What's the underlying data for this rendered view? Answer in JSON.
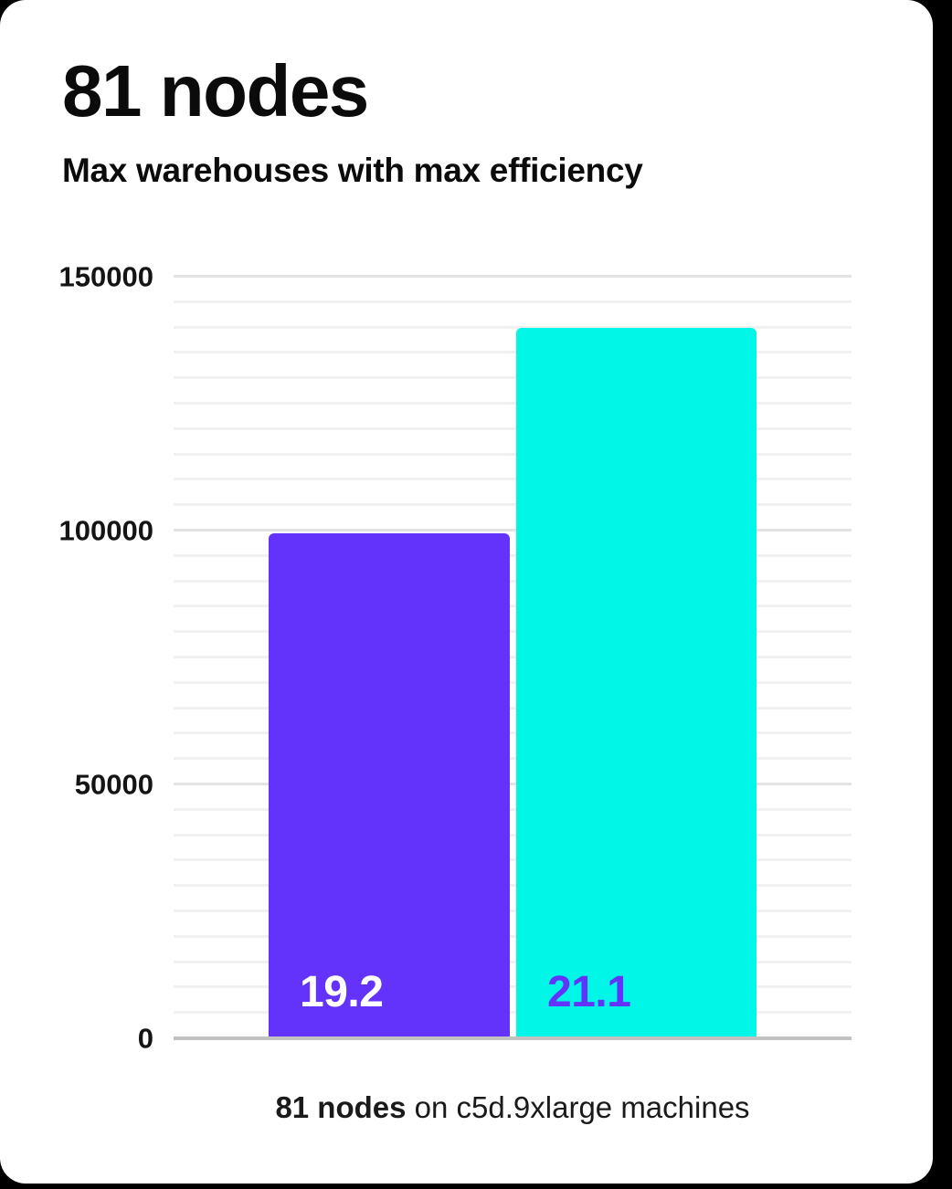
{
  "page": {
    "background": "#000000"
  },
  "card": {
    "background": "#ffffff"
  },
  "header": {
    "title": "81 nodes",
    "subtitle": "Max warehouses with max efficiency"
  },
  "chart_data": {
    "type": "bar",
    "title": "81 nodes",
    "subtitle": "Max warehouses with max efficiency",
    "ylim": [
      0,
      150000
    ],
    "yticks": [
      0,
      50000,
      100000,
      150000
    ],
    "ytick_labels": [
      "0",
      "50000",
      "100000",
      "150000"
    ],
    "minor_grid_step": 5000,
    "major_grid_step": 50000,
    "grid": true,
    "legend": false,
    "axis_color": "#c2c2c2",
    "bars": [
      {
        "label": "19.2",
        "value": 99500,
        "color": "#6333fb",
        "label_color": "#ffffff"
      },
      {
        "label": "21.1",
        "value": 140000,
        "color": "#00f7e8",
        "label_color": "#6333fb"
      }
    ]
  },
  "caption": {
    "bold": "81 nodes",
    "regular": " on c5d.9xlarge machines"
  }
}
